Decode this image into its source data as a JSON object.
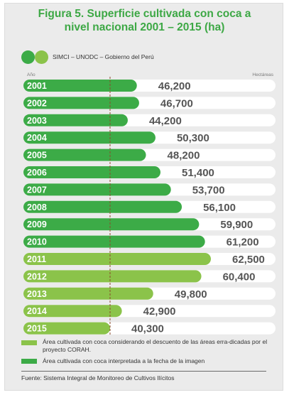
{
  "title_line1": "Figura 5. Superficie cultivada con coca a",
  "title_line2": "nivel nacional 2001 – 2015 (ha)",
  "source_label": "SIMCI – UNODC – Gobierno del Perú",
  "axis_left_label": "Año",
  "axis_right_label": "Hectáreas",
  "legend": {
    "light": "Área cultivada con coca considerando el descuento de las áreas erra-dicadas por el proyecto CORAH.",
    "dark": "Área cultivada con coca interpretada a la fecha de la imagen"
  },
  "footer": "Fuente: Sistema Integral de Monitoreo de Cultivos Ilícitos",
  "colors": {
    "dark_green": "#3cab47",
    "light_green": "#8bc34a",
    "title_green": "#3da845",
    "bar_bg": "#ffffff",
    "dashed_line": "#8b4a2b"
  },
  "chart_data": {
    "type": "bar",
    "orientation": "horizontal",
    "categories": [
      "2001",
      "2002",
      "2003",
      "2004",
      "2005",
      "2006",
      "2007",
      "2008",
      "2009",
      "2010",
      "2011",
      "2012",
      "2013",
      "2014",
      "2015"
    ],
    "values": [
      46200,
      46700,
      44200,
      50300,
      48200,
      51400,
      53700,
      56100,
      59900,
      61200,
      62500,
      60400,
      49800,
      42900,
      40300
    ],
    "value_labels": [
      "46,200",
      "46,700",
      "44,200",
      "50,300",
      "48,200",
      "51,400",
      "53,700",
      "56,100",
      "59,900",
      "61,200",
      "62,500",
      "60,400",
      "49,800",
      "42,900",
      "40,300"
    ],
    "series_type": [
      "interpreted",
      "interpreted",
      "interpreted",
      "interpreted",
      "interpreted",
      "interpreted",
      "interpreted",
      "interpreted",
      "interpreted",
      "interpreted",
      "corah_adjusted",
      "corah_adjusted",
      "corah_adjusted",
      "corah_adjusted",
      "corah_adjusted"
    ],
    "xlabel": "Hectáreas",
    "ylabel": "Año",
    "xlim": [
      0,
      65000
    ],
    "reference_line_value": 40300
  }
}
